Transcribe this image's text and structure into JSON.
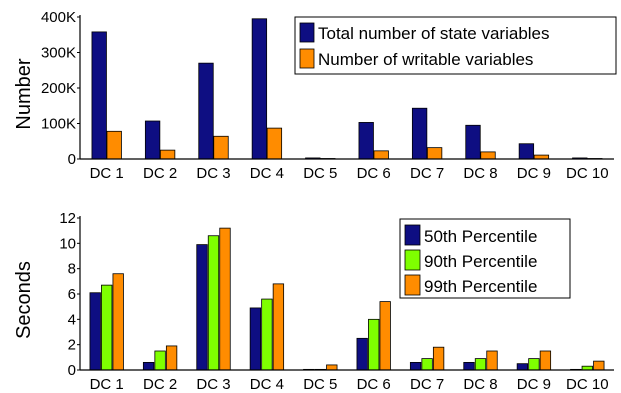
{
  "chart_data": [
    {
      "type": "bar",
      "categories": [
        "DC 1",
        "DC 2",
        "DC 3",
        "DC 4",
        "DC 5",
        "DC 6",
        "DC 7",
        "DC 8",
        "DC 9",
        "DC 10"
      ],
      "series": [
        {
          "name": "Total number of state variables",
          "values": [
            358000,
            107000,
            270000,
            395000,
            3000,
            103000,
            143000,
            95000,
            43000,
            3000
          ],
          "color": "#0e0e82"
        },
        {
          "name": "Number of writable variables",
          "values": [
            78000,
            25000,
            64000,
            87000,
            800,
            23000,
            32000,
            20000,
            11000,
            900
          ],
          "color": "#ff8c00"
        }
      ],
      "xlabel": "",
      "ylabel": "Number",
      "ylim": [
        0,
        400000
      ],
      "yticks": [
        0,
        100000,
        200000,
        300000,
        400000
      ],
      "ytick_labels": [
        "0",
        "100K",
        "200K",
        "300K",
        "400K"
      ],
      "legend_position": "top-right",
      "grid": false
    },
    {
      "type": "bar",
      "categories": [
        "DC 1",
        "DC 2",
        "DC 3",
        "DC 4",
        "DC 5",
        "DC 6",
        "DC 7",
        "DC 8",
        "DC 9",
        "DC 10"
      ],
      "series": [
        {
          "name": "50th Percentile",
          "values": [
            6.1,
            0.6,
            9.9,
            4.9,
            0.05,
            2.5,
            0.6,
            0.6,
            0.5,
            0.05
          ],
          "color": "#0e0e82"
        },
        {
          "name": "90th Percentile",
          "values": [
            6.7,
            1.5,
            10.6,
            5.6,
            0.05,
            4.0,
            0.9,
            0.9,
            0.9,
            0.3
          ],
          "color": "#7fff00"
        },
        {
          "name": "99th Percentile",
          "values": [
            7.6,
            1.9,
            11.2,
            6.8,
            0.4,
            5.4,
            1.8,
            1.5,
            1.5,
            0.7
          ],
          "color": "#ff8c00"
        }
      ],
      "xlabel": "",
      "ylabel": "Seconds",
      "ylim": [
        0,
        12
      ],
      "yticks": [
        0,
        2,
        4,
        6,
        8,
        10,
        12
      ],
      "ytick_labels": [
        "0",
        "2",
        "4",
        "6",
        "8",
        "10",
        "12"
      ],
      "legend_position": "top-right",
      "grid": false
    }
  ]
}
